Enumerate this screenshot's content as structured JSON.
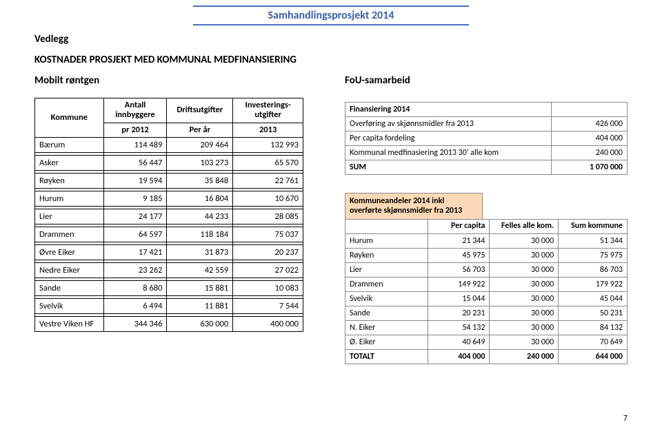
{
  "header": {
    "banner": "Samhandlingsprosjekt  2014",
    "vedlegg": "Vedlegg",
    "title": "KOSTNADER PROSJEKT MED KOMMUNAL MEDFINANSIERING",
    "sub_left": "Mobilt røntgen",
    "sub_right": "FoU-samarbeid",
    "page_no": "7"
  },
  "left_table": {
    "columns": {
      "c0_a": "Kommune",
      "c1_a": "Antall innbyggere",
      "c1_b": "pr 2012",
      "c2_a": "Driftsutgifter",
      "c2_b": "Per år",
      "c3_a": "Investerings-utgifter",
      "c3_b": "2013"
    },
    "rows": [
      {
        "name": "Bærum",
        "pop": "114 489",
        "drift": "209 464",
        "inv": "132 993"
      },
      {
        "name": "Asker",
        "pop": "56 447",
        "drift": "103 273",
        "inv": "65 570"
      },
      {
        "name": "Røyken",
        "pop": "19 594",
        "drift": "35 848",
        "inv": "22 761"
      },
      {
        "name": "Hurum",
        "pop": "9 185",
        "drift": "16 804",
        "inv": "10 670"
      },
      {
        "name": "Lier",
        "pop": "24 177",
        "drift": "44 233",
        "inv": "28 085"
      },
      {
        "name": "Drammen",
        "pop": "64 597",
        "drift": "118 184",
        "inv": "75 037"
      },
      {
        "name": "Øvre Eiker",
        "pop": "17 421",
        "drift": "31 873",
        "inv": "20 237"
      },
      {
        "name": "Nedre Eiker",
        "pop": "23 262",
        "drift": "42 559",
        "inv": "27 022"
      },
      {
        "name": "Sande",
        "pop": "8 680",
        "drift": "15 881",
        "inv": "10 083"
      },
      {
        "name": "Svelvik",
        "pop": "6 494",
        "drift": "11 881",
        "inv": "7 544"
      },
      {
        "name": "Vestre Viken HF",
        "pop": "344 346",
        "drift": "630 000",
        "inv": "400 000"
      }
    ]
  },
  "right_top": {
    "header": "Finansiering 2014",
    "rows": [
      {
        "label": "Overføring av skjønnsmidler fra 2013",
        "val": "426 000"
      },
      {
        "label": "Per capita fordeling",
        "val": "404 000"
      },
      {
        "label": "Kommunal medfinasiering 2013 30' alle kom",
        "val": "240 000"
      }
    ],
    "sum_label": "SUM",
    "sum_val": "1 070 000"
  },
  "right_bot": {
    "caption": "Kommuneandeler 2014 inkl overførte skjønnsmidler fra 2013",
    "columns": {
      "c0": "",
      "c1": "Per capita",
      "c2": "Felles  alle kom.",
      "c3": "Sum kommune"
    },
    "rows": [
      {
        "name": "Hurum",
        "pc": "21 344",
        "fk": "30 000",
        "sum": "51 344"
      },
      {
        "name": "Røyken",
        "pc": "45 975",
        "fk": "30 000",
        "sum": "75 975"
      },
      {
        "name": "Lier",
        "pc": "56 703",
        "fk": "30 000",
        "sum": "86 703"
      },
      {
        "name": "Drammen",
        "pc": "149 922",
        "fk": "30 000",
        "sum": "179 922"
      },
      {
        "name": "Svelvik",
        "pc": "15 044",
        "fk": "30 000",
        "sum": "45 044"
      },
      {
        "name": "Sande",
        "pc": "20 231",
        "fk": "30 000",
        "sum": "50 231"
      },
      {
        "name": "N. Eiker",
        "pc": "54 132",
        "fk": "30 000",
        "sum": "84 132"
      },
      {
        "name": "Ø. Eiker",
        "pc": "40 649",
        "fk": "30 000",
        "sum": "70 649"
      }
    ],
    "total_label": "TOTALT",
    "total": {
      "pc": "404 000",
      "fk": "240 000",
      "sum": "644 000"
    }
  }
}
